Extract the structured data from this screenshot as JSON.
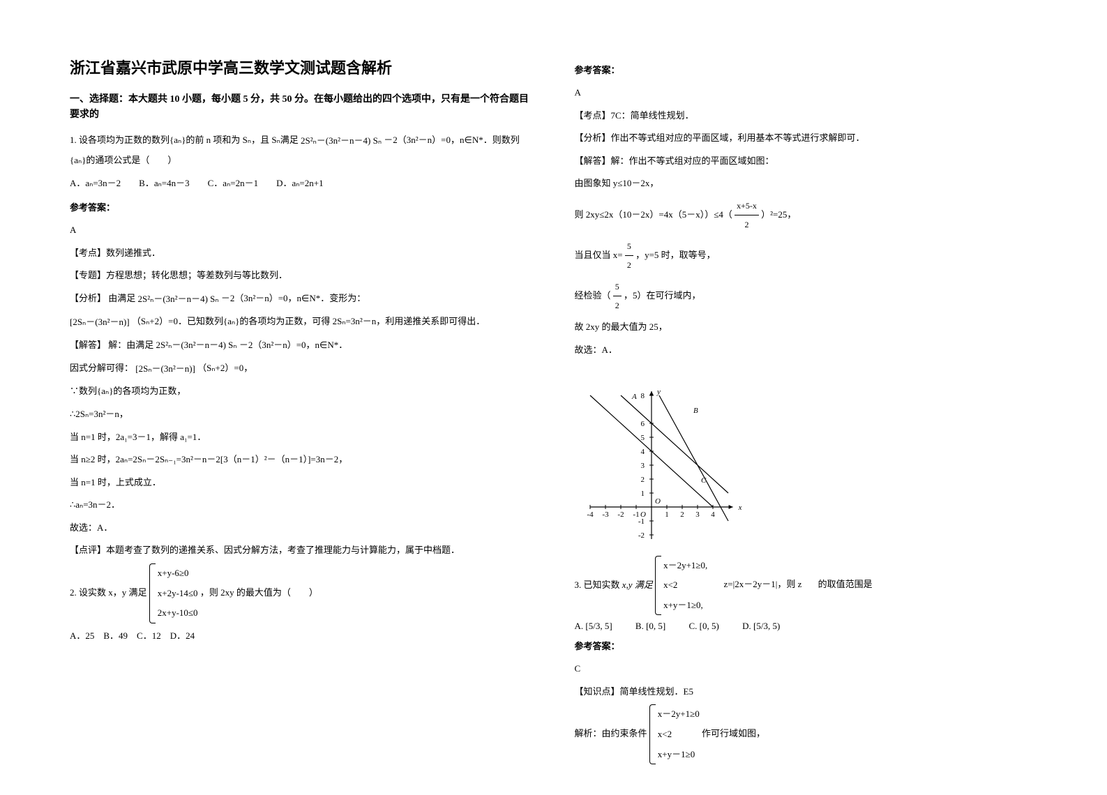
{
  "title": "浙江省嘉兴市武原中学高三数学文测试题含解析",
  "section1_heading": "一、选择题：本大题共 10 小题，每小题 5 分，共 50 分。在每小题给出的四个选项中，只有是一个符合题目要求的",
  "q1": {
    "text_a": "1. 设各项均为正数的数列{aₙ}的前 n 项和为 Sₙ，且 Sₙ满足",
    "formula1": "2S²ₙ－(3n²－n－4) Sₙ",
    "text_b": "－2（3n²－n）=0，n∈N*．则数列{aₙ}的通项公式是（　　）",
    "options": "A．aₙ=3n－2　　B．aₙ=4n－3　　C．aₙ=2n－1　　D．aₙ=2n+1"
  },
  "answer_label": "参考答案：",
  "q1_answer": {
    "letter": "A",
    "kaodian_label": "【考点】",
    "kaodian": "数列递推式．",
    "zhuanti_label": "【专题】",
    "zhuanti": "方程思想；转化思想；等差数列与等比数列．",
    "fenxi_label": "【分析】",
    "fenxi_a": "由满足",
    "fenxi_formula": "2S²ₙ－(3n²－n－4) Sₙ",
    "fenxi_b": "－2（3n²－n）=0，n∈N*．变形为：",
    "fenxi_c": "[2Sₙ－(3n²－n)]",
    "fenxi_d": "（Sₙ+2）=0．已知数列{aₙ}的各项均为正数，可得 2Sₙ=3n²－n，利用递推关系即可得出．",
    "jieda_label": "【解答】",
    "jieda_a": "解：由满足",
    "jieda_b": "－2（3n²－n）=0，n∈N*．",
    "jieda_c": "因式分解可得：",
    "jieda_formula2": "[2Sₙ－(3n²－n)]",
    "jieda_d": "（Sₙ+2）=0，",
    "line1": "∵数列{aₙ}的各项均为正数，",
    "line2": "∴2Sₙ=3n²－n，",
    "line3": "当 n=1 时，2a₁=3－1，解得 a₁=1．",
    "line4": "当 n≥2 时，2aₙ=2Sₙ－2Sₙ₋₁=3n²－n－2[3（n－1）²－（n－1）]=3n－2，",
    "line5": "当 n=1 时，上式成立．",
    "line6": "∴aₙ=3n－2．",
    "line7": "故选：A．",
    "dianping_label": "【点评】",
    "dianping": "本题考查了数列的递推关系、因式分解方法，考查了推理能力与计算能力，属于中档题．"
  },
  "q2": {
    "text_a": "2. 设实数 x，y 满足",
    "sys1": "x+y-6≥0",
    "sys2": "x+2y-14≤0",
    "sys3": "2x+y-10≤0",
    "text_b": "，则 2xy 的最大值为（　　）",
    "options": "A．25　B．49　C．12　D．24"
  },
  "q2_answer": {
    "letter": "A",
    "kaodian_label": "【考点】",
    "kaodian": "7C：简单线性规划．",
    "fenxi_label": "【分析】",
    "fenxi": "作出不等式组对应的平面区域，利用基本不等式进行求解即可．",
    "jieda_label": "【解答】",
    "jieda_a": "解：作出不等式组对应的平面区域如图：",
    "line1": "由图象知 y≤10－2x，",
    "line2a": "则 2xy≤2x（10－2x）=4x（5－x））≤4（",
    "frac1_num": "x+5-x",
    "frac1_den": "2",
    "line2b": "）²=25，",
    "line3a": "当且仅当 x=",
    "frac2_num": "5",
    "frac2_den": "2",
    "line3b": "，y=5 时，取等号，",
    "line4a": "经检验（",
    "frac3_num": "5",
    "frac3_den": "2",
    "line4b": "，5）在可行域内，",
    "line5": "故 2xy 的最大值为 25，",
    "line6": "故选：A．",
    "chart": {
      "background": "#ffffff",
      "axis_color": "#000000",
      "line_color": "#000000",
      "x_range": [
        -4,
        5
      ],
      "y_range": [
        -2,
        8
      ],
      "x_ticks": [
        -4,
        -3,
        -2,
        -1,
        1,
        2,
        3,
        4
      ],
      "y_ticks": [
        -2,
        -1,
        1,
        2,
        3,
        4,
        5,
        6,
        8
      ],
      "labels": {
        "A": [
          -1.5,
          7.5
        ],
        "B": [
          2.5,
          6.5
        ],
        "C": [
          3,
          1.5
        ],
        "O": [
          0,
          0
        ]
      },
      "lines": [
        {
          "from": [
            -2,
            8
          ],
          "to": [
            5,
            1
          ]
        },
        {
          "from": [
            -4,
            8
          ],
          "to": [
            4,
            0
          ]
        },
        {
          "from": [
            0.5,
            8
          ],
          "to": [
            5,
            -1
          ]
        }
      ]
    }
  },
  "q3": {
    "text_a": "3. 已知实数",
    "text_mid": "x,y 满足",
    "sys1": "x－2y+1≥0,",
    "sys2": "x<2",
    "sys3": "x+y－1≥0,",
    "text_z": "z=|2x－2y－1|，则 z",
    "text_b": "的取值范围是",
    "optA": "A. [5/3, 5]",
    "optB": "B. [0, 5]",
    "optC": "C. [0, 5)",
    "optD": "D. [5/3, 5)"
  },
  "q3_answer": {
    "letter": "C",
    "zhishidian_label": "【知识点】",
    "zhishidian": "简单线性规划．E5",
    "jiexi_a": "解析：由约束条件",
    "sys1": "x－2y+1≥0",
    "sys2": "x<2",
    "sys3": "x+y－1≥0",
    "jiexi_b": " 作可行域如图，"
  }
}
